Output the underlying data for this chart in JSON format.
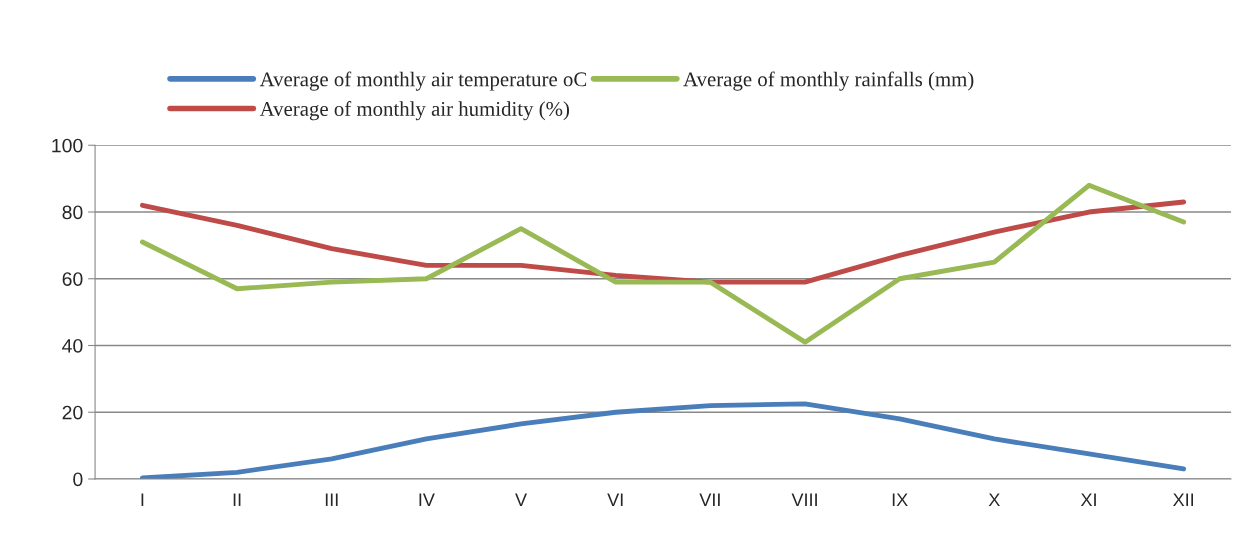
{
  "chart_data": {
    "type": "line",
    "categories": [
      "I",
      "II",
      "III",
      "IV",
      "V",
      "VI",
      "VII",
      "VIII",
      "IX",
      "X",
      "XI",
      "XII"
    ],
    "series": [
      {
        "name": "Average of monthly air temperature oC",
        "color": "#4a7ebb",
        "values": [
          0.3,
          2,
          6,
          12,
          16.5,
          20,
          22,
          22.5,
          18,
          12,
          7.5,
          3
        ]
      },
      {
        "name": "Average of monthly air humidity (%)",
        "color": "#be4b48",
        "values": [
          82,
          76,
          69,
          64,
          64,
          61,
          59,
          59,
          67,
          74,
          80,
          83
        ]
      },
      {
        "name": "Average of monthly rainfalls (mm)",
        "color": "#98b954",
        "values": [
          71,
          57,
          59,
          60,
          75,
          59,
          59,
          41,
          60,
          65,
          88,
          77
        ]
      }
    ],
    "ylim": [
      0,
      100
    ],
    "yticks": [
      0,
      20,
      40,
      60,
      80,
      100
    ],
    "grid": "y",
    "legend": "top",
    "marker": "none",
    "line_style": "solid"
  }
}
